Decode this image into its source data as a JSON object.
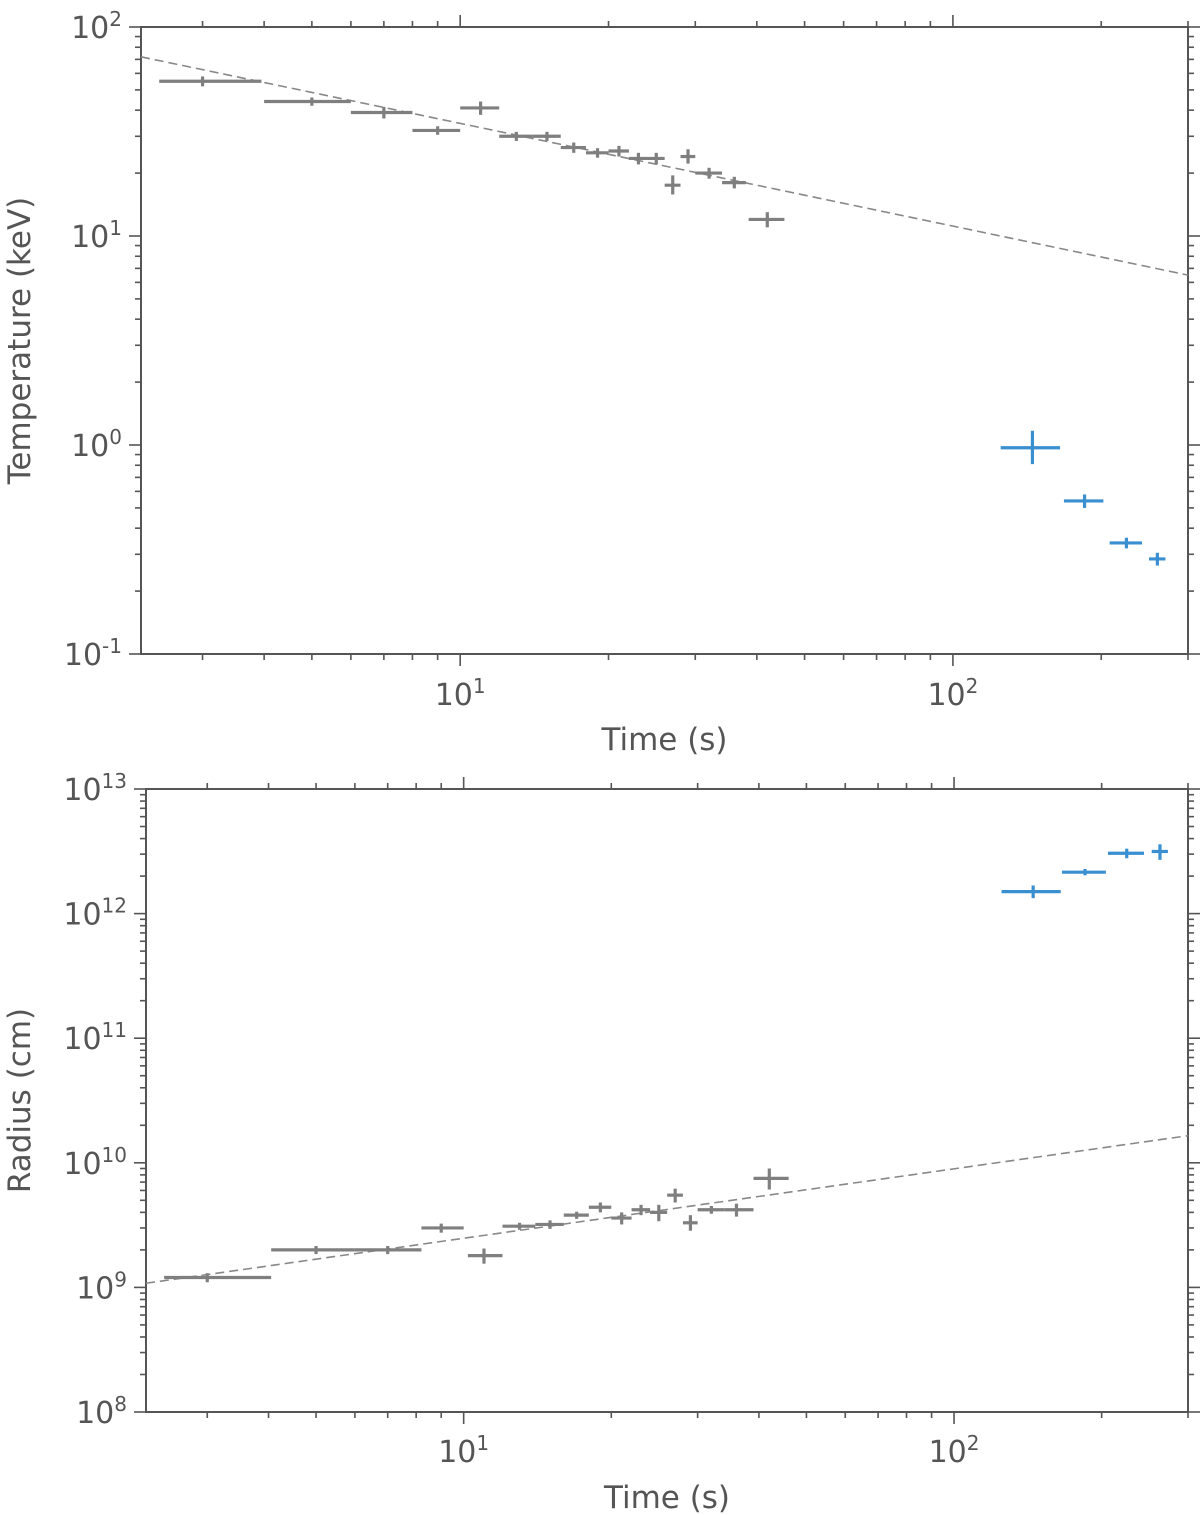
{
  "chart_data": [
    {
      "type": "scatter",
      "name": "temperature-panel",
      "xlabel": "Time (s)",
      "ylabel": "Temperature (keV)",
      "xscale": "log",
      "yscale": "log",
      "xlim": [
        2.25,
        300
      ],
      "ylim": [
        0.1,
        100
      ],
      "xtick_labels": [
        {
          "value": 10,
          "base": "10",
          "exp": "1"
        },
        {
          "value": 100,
          "base": "10",
          "exp": "2"
        }
      ],
      "ytick_labels": [
        {
          "value": 0.1,
          "base": "10",
          "exp": "-1"
        },
        {
          "value": 1,
          "base": "10",
          "exp": "0"
        },
        {
          "value": 10,
          "base": "10",
          "exp": "1"
        },
        {
          "value": 100,
          "base": "10",
          "exp": "2"
        }
      ],
      "fit_line": {
        "style": "dashed",
        "color": "#888888",
        "x": [
          2.25,
          300
        ],
        "y": [
          72,
          6.5
        ]
      },
      "series": [
        {
          "name": "gray points",
          "color": "#7f7f7f",
          "points": [
            {
              "x": 3.0,
              "xlo": 2.45,
              "xhi": 3.95,
              "y": 55,
              "ylo": 52,
              "yhi": 58
            },
            {
              "x": 5.0,
              "xlo": 4.0,
              "xhi": 6.0,
              "y": 44,
              "ylo": 42,
              "yhi": 46
            },
            {
              "x": 7.0,
              "xlo": 6.0,
              "xhi": 8.0,
              "y": 39,
              "ylo": 36.5,
              "yhi": 41.5
            },
            {
              "x": 9.0,
              "xlo": 8.0,
              "xhi": 10.0,
              "y": 32,
              "ylo": 30.5,
              "yhi": 33.5
            },
            {
              "x": 11.0,
              "xlo": 10.0,
              "xhi": 12.0,
              "y": 41,
              "ylo": 38,
              "yhi": 44
            },
            {
              "x": 13.0,
              "xlo": 12.0,
              "xhi": 14.0,
              "y": 30,
              "ylo": 28.5,
              "yhi": 31.5
            },
            {
              "x": 15.0,
              "xlo": 14.0,
              "xhi": 16.0,
              "y": 30,
              "ylo": 28.5,
              "yhi": 31.5
            },
            {
              "x": 17.0,
              "xlo": 16.0,
              "xhi": 18.0,
              "y": 26.5,
              "ylo": 25,
              "yhi": 28
            },
            {
              "x": 19.0,
              "xlo": 18.0,
              "xhi": 20.0,
              "y": 25,
              "ylo": 23.7,
              "yhi": 26.3
            },
            {
              "x": 21.0,
              "xlo": 20.0,
              "xhi": 22.0,
              "y": 25.5,
              "ylo": 24,
              "yhi": 27
            },
            {
              "x": 23.0,
              "xlo": 22.0,
              "xhi": 24.0,
              "y": 23.5,
              "ylo": 22,
              "yhi": 25
            },
            {
              "x": 25.0,
              "xlo": 24.0,
              "xhi": 26.0,
              "y": 23.5,
              "ylo": 22,
              "yhi": 25
            },
            {
              "x": 27.0,
              "xlo": 26.0,
              "xhi": 28.0,
              "y": 17.5,
              "ylo": 15.8,
              "yhi": 19.5
            },
            {
              "x": 29.0,
              "xlo": 28.0,
              "xhi": 30.0,
              "y": 24,
              "ylo": 22.2,
              "yhi": 26
            },
            {
              "x": 32.0,
              "xlo": 30.0,
              "xhi": 34.0,
              "y": 20,
              "ylo": 18.8,
              "yhi": 21.2
            },
            {
              "x": 36.0,
              "xlo": 34.0,
              "xhi": 38.0,
              "y": 18,
              "ylo": 16.9,
              "yhi": 19.2
            },
            {
              "x": 42.0,
              "xlo": 38.5,
              "xhi": 45.5,
              "y": 12,
              "ylo": 11,
              "yhi": 13
            }
          ]
        },
        {
          "name": "blue points",
          "color": "#3a8fd0",
          "points": [
            {
              "x": 145,
              "xlo": 125,
              "xhi": 165,
              "y": 0.97,
              "ylo": 0.81,
              "yhi": 1.17
            },
            {
              "x": 185,
              "xlo": 168,
              "xhi": 202,
              "y": 0.54,
              "ylo": 0.5,
              "yhi": 0.58
            },
            {
              "x": 225,
              "xlo": 208,
              "xhi": 242,
              "y": 0.34,
              "ylo": 0.32,
              "yhi": 0.36
            },
            {
              "x": 260,
              "xlo": 250,
              "xhi": 270,
              "y": 0.285,
              "ylo": 0.265,
              "yhi": 0.305
            }
          ]
        }
      ]
    },
    {
      "type": "scatter",
      "name": "radius-panel",
      "xlabel": "Time (s)",
      "ylabel": "Radius (cm)",
      "xscale": "log",
      "yscale": "log",
      "xlim": [
        2.25,
        300
      ],
      "ylim": [
        100000000.0,
        10000000000000.0
      ],
      "xtick_labels": [
        {
          "value": 10,
          "base": "10",
          "exp": "1"
        },
        {
          "value": 100,
          "base": "10",
          "exp": "2"
        }
      ],
      "ytick_labels": [
        {
          "value": 100000000.0,
          "base": "10",
          "exp": "8"
        },
        {
          "value": 1000000000.0,
          "base": "10",
          "exp": "9"
        },
        {
          "value": 10000000000.0,
          "base": "10",
          "exp": "10"
        },
        {
          "value": 100000000000.0,
          "base": "10",
          "exp": "11"
        },
        {
          "value": 1000000000000.0,
          "base": "10",
          "exp": "12"
        },
        {
          "value": 10000000000000.0,
          "base": "10",
          "exp": "13"
        }
      ],
      "fit_line": {
        "style": "dashed",
        "color": "#888888",
        "x": [
          2.25,
          300
        ],
        "y": [
          1080000000.0,
          16500000000.0
        ]
      },
      "series": [
        {
          "name": "gray points",
          "color": "#7f7f7f",
          "points": [
            {
              "x": 3.0,
              "xlo": 2.45,
              "xhi": 4.05,
              "y": 1200000000.0,
              "ylo": 1100000000.0,
              "yhi": 1300000000.0
            },
            {
              "x": 5.0,
              "xlo": 4.05,
              "xhi": 6.0,
              "y": 2000000000.0,
              "ylo": 1850000000.0,
              "yhi": 2150000000.0
            },
            {
              "x": 7.0,
              "xlo": 6.0,
              "xhi": 8.2,
              "y": 2000000000.0,
              "ylo": 1850000000.0,
              "yhi": 2150000000.0
            },
            {
              "x": 9.0,
              "xlo": 8.2,
              "xhi": 10.0,
              "y": 3000000000.0,
              "ylo": 2750000000.0,
              "yhi": 3250000000.0
            },
            {
              "x": 11.0,
              "xlo": 10.2,
              "xhi": 12.0,
              "y": 1800000000.0,
              "ylo": 1550000000.0,
              "yhi": 2050000000.0
            },
            {
              "x": 13.0,
              "xlo": 12.0,
              "xhi": 14.0,
              "y": 3100000000.0,
              "ylo": 2900000000.0,
              "yhi": 3300000000.0
            },
            {
              "x": 15.0,
              "xlo": 14.0,
              "xhi": 16.0,
              "y": 3200000000.0,
              "ylo": 2950000000.0,
              "yhi": 3450000000.0
            },
            {
              "x": 17.0,
              "xlo": 16.0,
              "xhi": 18.0,
              "y": 3800000000.0,
              "ylo": 3550000000.0,
              "yhi": 4050000000.0
            },
            {
              "x": 19.0,
              "xlo": 18.0,
              "xhi": 20.0,
              "y": 4400000000.0,
              "ylo": 4000000000.0,
              "yhi": 4800000000.0
            },
            {
              "x": 21.0,
              "xlo": 20.0,
              "xhi": 22.0,
              "y": 3600000000.0,
              "ylo": 3200000000.0,
              "yhi": 4000000000.0
            },
            {
              "x": 23.0,
              "xlo": 22.0,
              "xhi": 24.0,
              "y": 4200000000.0,
              "ylo": 3800000000.0,
              "yhi": 4600000000.0
            },
            {
              "x": 25.0,
              "xlo": 24.0,
              "xhi": 26.0,
              "y": 4000000000.0,
              "ylo": 3400000000.0,
              "yhi": 4600000000.0
            },
            {
              "x": 27.0,
              "xlo": 26.0,
              "xhi": 28.0,
              "y": 5500000000.0,
              "ylo": 4800000000.0,
              "yhi": 6200000000.0
            },
            {
              "x": 29.0,
              "xlo": 28.0,
              "xhi": 30.0,
              "y": 3300000000.0,
              "ylo": 2850000000.0,
              "yhi": 3800000000.0
            },
            {
              "x": 32.0,
              "xlo": 30.0,
              "xhi": 34.0,
              "y": 4200000000.0,
              "ylo": 3900000000.0,
              "yhi": 4500000000.0
            },
            {
              "x": 36.0,
              "xlo": 34.0,
              "xhi": 39.0,
              "y": 4200000000.0,
              "ylo": 3700000000.0,
              "yhi": 4700000000.0
            },
            {
              "x": 42.0,
              "xlo": 39.0,
              "xhi": 46.0,
              "y": 7500000000.0,
              "ylo": 6100000000.0,
              "yhi": 9000000000.0
            }
          ]
        },
        {
          "name": "blue points",
          "color": "#3a8fd0",
          "points": [
            {
              "x": 145,
              "xlo": 125,
              "xhi": 165,
              "y": 1500000000000.0,
              "ylo": 1330000000000.0,
              "yhi": 1680000000000.0
            },
            {
              "x": 185,
              "xlo": 166,
              "xhi": 204,
              "y": 2150000000000.0,
              "ylo": 2030000000000.0,
              "yhi": 2280000000000.0
            },
            {
              "x": 225,
              "xlo": 206,
              "xhi": 244,
              "y": 3050000000000.0,
              "ylo": 2780000000000.0,
              "yhi": 3320000000000.0
            },
            {
              "x": 263,
              "xlo": 253,
              "xhi": 273,
              "y": 3150000000000.0,
              "ylo": 2700000000000.0,
              "yhi": 3600000000000.0
            }
          ]
        }
      ]
    }
  ]
}
